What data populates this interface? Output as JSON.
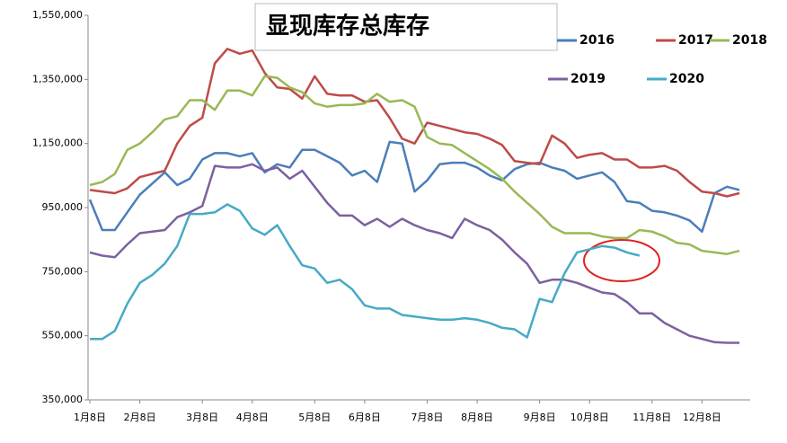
{
  "chart_data": {
    "type": "line",
    "title": "显现库存总库存",
    "categories": [
      "1月8日",
      null,
      null,
      null,
      "2月8日",
      null,
      null,
      null,
      null,
      "3月8日",
      null,
      null,
      null,
      "4月8日",
      null,
      null,
      null,
      null,
      "5月8日",
      null,
      null,
      null,
      "6月8日",
      null,
      null,
      null,
      null,
      "7月8日",
      null,
      null,
      null,
      "8月8日",
      null,
      null,
      null,
      null,
      "9月8日",
      null,
      null,
      null,
      "10月8日",
      null,
      null,
      null,
      null,
      "11月8日",
      null,
      null,
      null,
      "12月8日",
      null,
      null,
      null
    ],
    "series": [
      {
        "name": "2016",
        "color": "#4a7ebb",
        "values": [
          975000,
          880000,
          880000,
          935000,
          990000,
          1025000,
          1060000,
          1020000,
          1040000,
          1100000,
          1120000,
          1120000,
          1110000,
          1120000,
          1060000,
          1085000,
          1075000,
          1130000,
          1130000,
          1110000,
          1090000,
          1050000,
          1065000,
          1030000,
          1155000,
          1150000,
          1000000,
          1035000,
          1085000,
          1090000,
          1090000,
          1075000,
          1050000,
          1035000,
          1070000,
          1085000,
          1090000,
          1075000,
          1065000,
          1040000,
          1050000,
          1060000,
          1030000,
          970000,
          965000,
          940000,
          935000,
          925000,
          910000,
          875000,
          995000,
          1015000,
          1005000
        ]
      },
      {
        "name": "2017",
        "color": "#be4b48",
        "values": [
          1005000,
          1000000,
          995000,
          1010000,
          1045000,
          1055000,
          1065000,
          1150000,
          1205000,
          1230000,
          1400000,
          1445000,
          1430000,
          1440000,
          1370000,
          1325000,
          1320000,
          1290000,
          1360000,
          1305000,
          1300000,
          1300000,
          1280000,
          1285000,
          1230000,
          1165000,
          1150000,
          1215000,
          1205000,
          1195000,
          1185000,
          1180000,
          1165000,
          1145000,
          1095000,
          1090000,
          1085000,
          1175000,
          1150000,
          1105000,
          1115000,
          1120000,
          1100000,
          1100000,
          1075000,
          1075000,
          1080000,
          1065000,
          1030000,
          1000000,
          995000,
          985000,
          995000
        ]
      },
      {
        "name": "2018",
        "color": "#98b954",
        "values": [
          1020000,
          1030000,
          1055000,
          1130000,
          1150000,
          1185000,
          1225000,
          1235000,
          1285000,
          1285000,
          1255000,
          1315000,
          1315000,
          1300000,
          1360000,
          1355000,
          1325000,
          1310000,
          1275000,
          1265000,
          1270000,
          1270000,
          1275000,
          1305000,
          1280000,
          1285000,
          1265000,
          1170000,
          1150000,
          1145000,
          1120000,
          1095000,
          1070000,
          1040000,
          1000000,
          965000,
          930000,
          890000,
          870000,
          870000,
          870000,
          860000,
          855000,
          855000,
          880000,
          875000,
          860000,
          840000,
          835000,
          815000,
          810000,
          805000,
          815000
        ]
      },
      {
        "name": "2019",
        "color": "#7d60a0",
        "values": [
          810000,
          800000,
          795000,
          835000,
          870000,
          875000,
          880000,
          920000,
          935000,
          955000,
          1080000,
          1075000,
          1075000,
          1085000,
          1065000,
          1075000,
          1040000,
          1065000,
          1015000,
          965000,
          925000,
          925000,
          895000,
          915000,
          890000,
          915000,
          895000,
          880000,
          870000,
          855000,
          915000,
          895000,
          880000,
          850000,
          810000,
          775000,
          715000,
          725000,
          725000,
          715000,
          700000,
          685000,
          680000,
          655000,
          620000,
          620000,
          590000,
          570000,
          550000,
          540000,
          530000,
          528000,
          528000
        ]
      },
      {
        "name": "2020",
        "color": "#46aac5",
        "values": [
          540000,
          540000,
          565000,
          650000,
          715000,
          740000,
          775000,
          830000,
          930000,
          930000,
          935000,
          960000,
          940000,
          885000,
          865000,
          895000,
          830000,
          770000,
          760000,
          715000,
          725000,
          695000,
          645000,
          635000,
          635000,
          615000,
          610000,
          605000,
          600000,
          600000,
          605000,
          600000,
          590000,
          575000,
          570000,
          545000,
          665000,
          655000,
          745000,
          810000,
          820000,
          830000,
          825000,
          810000,
          800000,
          null,
          null,
          null,
          null,
          null,
          null,
          null,
          null
        ]
      }
    ],
    "ylim": [
      350000,
      1550000
    ],
    "yticks": [
      {
        "value": 350000,
        "label": "350,000"
      },
      {
        "value": 550000,
        "label": "550,000"
      },
      {
        "value": 750000,
        "label": "750,000"
      },
      {
        "value": 950000,
        "label": "950,000"
      },
      {
        "value": 1150000,
        "label": "1,150,000"
      },
      {
        "value": 1350000,
        "label": "1,350,000"
      },
      {
        "value": 1550000,
        "label": "1,550,000"
      }
    ],
    "grid": false,
    "legend": "upper right"
  }
}
